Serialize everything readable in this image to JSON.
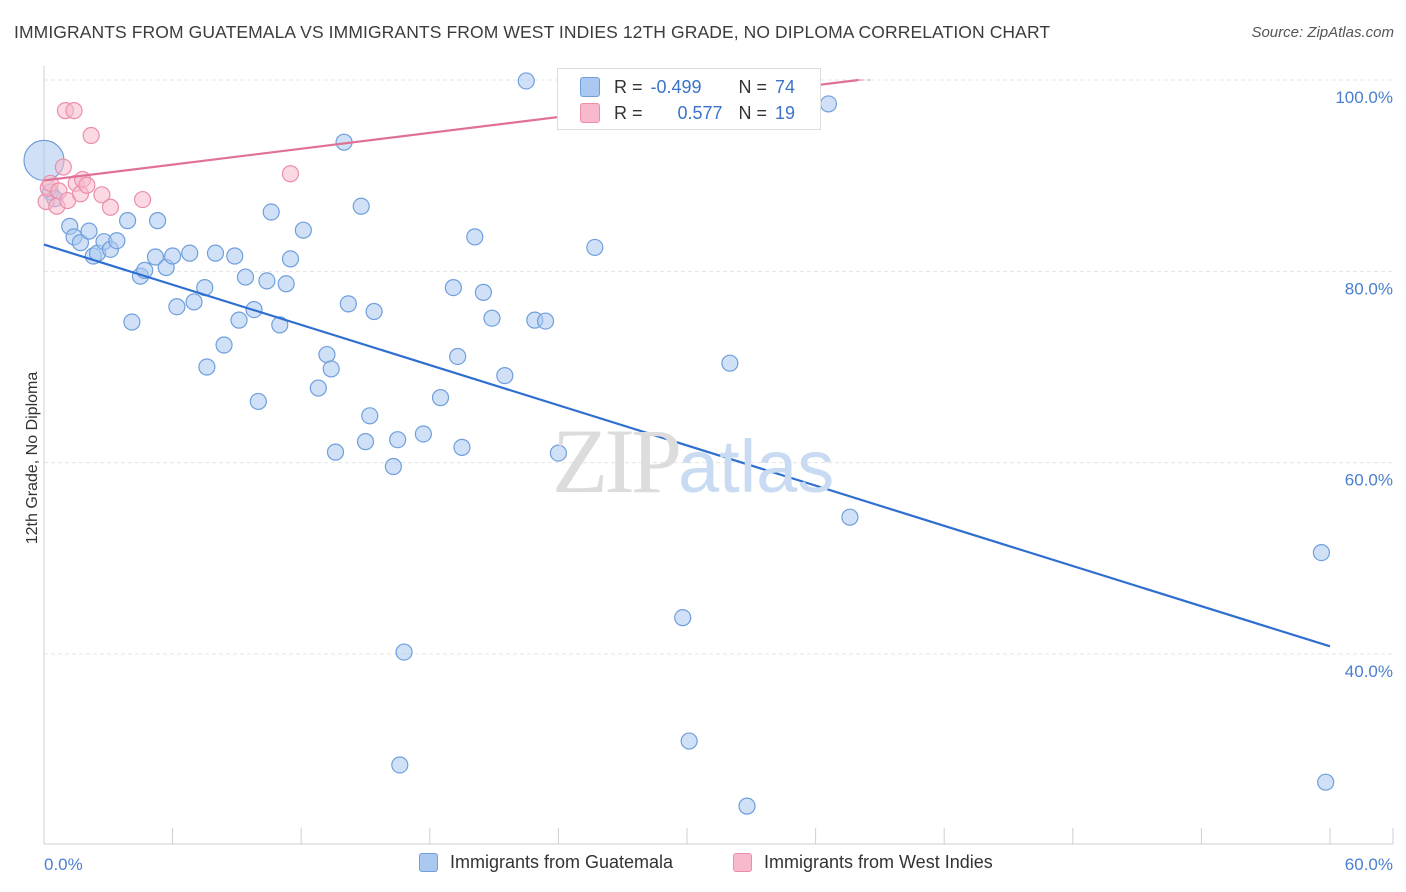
{
  "title": "IMMIGRANTS FROM GUATEMALA VS IMMIGRANTS FROM WEST INDIES 12TH GRADE, NO DIPLOMA CORRELATION CHART",
  "source": "Source: ZipAtlas.com",
  "watermark": {
    "zip": "ZIP",
    "atlas": "atlas"
  },
  "colors": {
    "blue_fill": "#aac8f0",
    "blue_stroke": "#6f9fdc",
    "blue_line": "#2f6fcf",
    "pink_fill": "#f7b9cb",
    "pink_stroke": "#ec8eaa",
    "pink_line": "#e07098",
    "grid": "#e4e4e4",
    "axis_text": "#4a7fcf"
  },
  "legend": {
    "series1_label": "Immigrants from Guatemala",
    "series2_label": "Immigrants from West Indies"
  },
  "stats": {
    "row1": {
      "r_label": "R =",
      "r_value": "-0.499",
      "n_label": "N =",
      "n_value": "74"
    },
    "row2": {
      "r_label": "R =",
      "r_value": "0.577",
      "n_label": "N =",
      "n_value": "19"
    }
  },
  "chart_data": {
    "type": "scatter",
    "title": "IMMIGRANTS FROM GUATEMALA VS IMMIGRANTS FROM WEST INDIES 12TH GRADE, NO DIPLOMA CORRELATION CHART",
    "xlabel": "",
    "ylabel": "12th Grade, No Diploma",
    "xlim": [
      0,
      60
    ],
    "ylim": [
      20,
      102
    ],
    "x_tick_labels": [
      "0.0%",
      "60.0%"
    ],
    "y_ticks": [
      40,
      60,
      80,
      100
    ],
    "y_tick_labels": [
      "40.0%",
      "60.0%",
      "80.0%",
      "100.0%"
    ],
    "grid": true,
    "legend_position": "bottom",
    "series": [
      {
        "name": "Immigrants from Guatemala",
        "color": "#aac8f0",
        "points": [
          [
            0.0,
            91.6
          ],
          [
            0.3,
            88.3
          ],
          [
            0.5,
            87.6
          ],
          [
            1.2,
            84.7
          ],
          [
            1.4,
            83.6
          ],
          [
            1.7,
            83.0
          ],
          [
            2.1,
            84.2
          ],
          [
            2.3,
            81.6
          ],
          [
            2.5,
            81.9
          ],
          [
            2.8,
            83.1
          ],
          [
            3.1,
            82.3
          ],
          [
            3.4,
            83.2
          ],
          [
            3.9,
            85.3
          ],
          [
            4.1,
            74.7
          ],
          [
            4.5,
            79.5
          ],
          [
            4.7,
            80.1
          ],
          [
            5.2,
            81.5
          ],
          [
            5.3,
            85.3
          ],
          [
            5.7,
            80.4
          ],
          [
            6.0,
            81.6
          ],
          [
            6.2,
            76.3
          ],
          [
            6.8,
            81.9
          ],
          [
            7.0,
            76.8
          ],
          [
            7.5,
            78.3
          ],
          [
            7.6,
            70.0
          ],
          [
            8.0,
            81.9
          ],
          [
            8.4,
            72.3
          ],
          [
            8.9,
            81.6
          ],
          [
            9.1,
            74.9
          ],
          [
            9.4,
            79.4
          ],
          [
            9.8,
            76.0
          ],
          [
            10.0,
            66.4
          ],
          [
            10.4,
            79.0
          ],
          [
            10.6,
            86.2
          ],
          [
            11.0,
            74.4
          ],
          [
            11.3,
            78.7
          ],
          [
            11.5,
            81.3
          ],
          [
            12.1,
            84.3
          ],
          [
            12.8,
            67.8
          ],
          [
            13.2,
            71.3
          ],
          [
            13.4,
            69.8
          ],
          [
            13.6,
            61.1
          ],
          [
            14.0,
            93.5
          ],
          [
            14.2,
            76.6
          ],
          [
            14.8,
            86.8
          ],
          [
            15.0,
            62.2
          ],
          [
            15.2,
            64.9
          ],
          [
            15.4,
            75.8
          ],
          [
            16.3,
            59.6
          ],
          [
            16.5,
            62.4
          ],
          [
            16.8,
            40.2
          ],
          [
            16.6,
            28.4
          ],
          [
            17.7,
            63.0
          ],
          [
            18.5,
            66.8
          ],
          [
            19.1,
            78.3
          ],
          [
            19.3,
            71.1
          ],
          [
            19.5,
            61.6
          ],
          [
            20.1,
            83.6
          ],
          [
            20.5,
            77.8
          ],
          [
            20.9,
            75.1
          ],
          [
            21.5,
            69.1
          ],
          [
            22.5,
            99.9
          ],
          [
            22.9,
            74.9
          ],
          [
            23.4,
            74.8
          ],
          [
            24.0,
            61.0
          ],
          [
            25.7,
            82.5
          ],
          [
            29.8,
            43.8
          ],
          [
            30.1,
            30.9
          ],
          [
            32.0,
            70.4
          ],
          [
            32.8,
            24.1
          ],
          [
            36.6,
            97.5
          ],
          [
            37.6,
            54.3
          ],
          [
            59.6,
            50.6
          ],
          [
            59.8,
            26.6
          ]
        ]
      },
      {
        "name": "Immigrants from West Indies",
        "color": "#f7b9cb",
        "points": [
          [
            0.1,
            87.3
          ],
          [
            0.2,
            88.7
          ],
          [
            0.3,
            89.2
          ],
          [
            0.6,
            86.8
          ],
          [
            0.7,
            88.4
          ],
          [
            0.9,
            90.9
          ],
          [
            1.0,
            96.8
          ],
          [
            1.1,
            87.4
          ],
          [
            1.4,
            96.8
          ],
          [
            1.5,
            89.2
          ],
          [
            1.7,
            88.1
          ],
          [
            1.8,
            89.6
          ],
          [
            2.0,
            89.0
          ],
          [
            2.2,
            94.2
          ],
          [
            2.7,
            88.0
          ],
          [
            3.1,
            86.7
          ],
          [
            4.6,
            87.5
          ],
          [
            11.5,
            90.2
          ],
          [
            24.5,
            96.0
          ]
        ]
      }
    ],
    "trend_lines": [
      {
        "name": "Immigrants from Guatemala",
        "x": [
          0,
          60
        ],
        "y": [
          82.8,
          40.8
        ],
        "color": "#2f6fcf"
      },
      {
        "name": "Immigrants from West Indies",
        "x": [
          0,
          38
        ],
        "y": [
          89.5,
          100.0
        ],
        "color": "#e07098"
      }
    ]
  }
}
